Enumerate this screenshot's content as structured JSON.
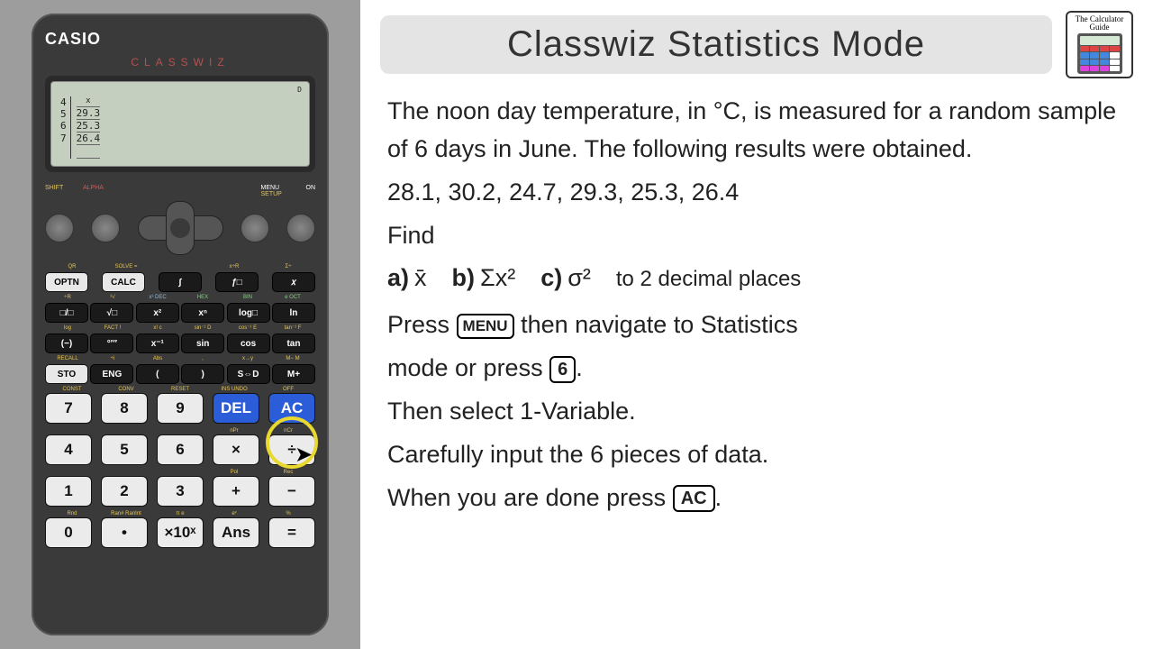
{
  "calc": {
    "brand": "CASIO",
    "model": "CLASSWIZ",
    "screen": {
      "indicator": "D",
      "col_header": "x",
      "rows": [
        {
          "idx": "4",
          "val": "29.3"
        },
        {
          "idx": "5",
          "val": "25.3"
        },
        {
          "idx": "6",
          "val": "26.4"
        },
        {
          "idx": "7",
          "val": ""
        }
      ]
    },
    "top_labels": {
      "shift": "SHIFT",
      "alpha": "ALPHA",
      "menu": "MENU",
      "setup": "SETUP",
      "on": "ON"
    },
    "func_rows": [
      {
        "labels": [
          {
            "t": "QR",
            "c": "yl"
          },
          {
            "t": "SOLVE =",
            "c": "yl"
          },
          {
            "t": "",
            "c": ""
          },
          {
            "t": "x÷R",
            "c": "yl"
          },
          {
            "t": "Σ÷",
            "c": "yl"
          }
        ],
        "btns": [
          {
            "t": "OPTN",
            "s": "wht"
          },
          {
            "t": "CALC",
            "s": "wht"
          },
          {
            "t": "∫",
            "s": "blk"
          },
          {
            "t": "ƒ□",
            "s": "blk"
          },
          {
            "t": "𝑥",
            "s": "blk"
          }
        ]
      },
      {
        "labels": [
          {
            "t": "÷R",
            "c": "yl"
          },
          {
            "t": "³√",
            "c": "yl"
          },
          {
            "t": "x³  DEC",
            "c": "bl"
          },
          {
            "t": "HEX",
            "c": "gl"
          },
          {
            "t": "BIN",
            "c": "gl"
          },
          {
            "t": "e  OCT",
            "c": "gl"
          }
        ],
        "btns": [
          {
            "t": "□/□",
            "s": "blk"
          },
          {
            "t": "√□",
            "s": "blk"
          },
          {
            "t": "x²",
            "s": "blk"
          },
          {
            "t": "xⁿ",
            "s": "blk"
          },
          {
            "t": "log□",
            "s": "blk"
          },
          {
            "t": "ln",
            "s": "blk"
          }
        ]
      },
      {
        "labels": [
          {
            "t": "log",
            "c": "yl"
          },
          {
            "t": "FACT !",
            "c": "yl"
          },
          {
            "t": "x! c",
            "c": "yl"
          },
          {
            "t": "sin⁻¹ D",
            "c": "yl"
          },
          {
            "t": "cos⁻¹ E",
            "c": "yl"
          },
          {
            "t": "tan⁻¹ F",
            "c": "yl"
          }
        ],
        "btns": [
          {
            "t": "(−)",
            "s": "blk"
          },
          {
            "t": "°′″",
            "s": "blk"
          },
          {
            "t": "x⁻¹",
            "s": "blk"
          },
          {
            "t": "sin",
            "s": "blk"
          },
          {
            "t": "cos",
            "s": "blk"
          },
          {
            "t": "tan",
            "s": "blk"
          }
        ]
      },
      {
        "labels": [
          {
            "t": "RECALL",
            "c": "yl"
          },
          {
            "t": "÷i",
            "c": "yl"
          },
          {
            "t": "Abs",
            "c": "yl"
          },
          {
            "t": ",",
            "c": "yl"
          },
          {
            "t": "x→y",
            "c": "yl"
          },
          {
            "t": "M−  M",
            "c": "yl"
          }
        ],
        "btns": [
          {
            "t": "STO",
            "s": "wht"
          },
          {
            "t": "ENG",
            "s": "blk"
          },
          {
            "t": "(",
            "s": "blk"
          },
          {
            "t": ")",
            "s": "blk"
          },
          {
            "t": "S⇔D",
            "s": "blk"
          },
          {
            "t": "M+",
            "s": "blk"
          }
        ]
      }
    ],
    "num_rows": [
      {
        "labels": [
          "CONST",
          "CONV",
          "RESET",
          "INS  UNDO",
          "OFF"
        ],
        "btns": [
          {
            "t": "7",
            "s": "num"
          },
          {
            "t": "8",
            "s": "num"
          },
          {
            "t": "9",
            "s": "num"
          },
          {
            "t": "DEL",
            "s": "blue"
          },
          {
            "t": "AC",
            "s": "blue"
          }
        ]
      },
      {
        "labels": [
          "",
          "",
          "",
          "nPr",
          "nCr"
        ],
        "btns": [
          {
            "t": "4",
            "s": "num"
          },
          {
            "t": "5",
            "s": "num"
          },
          {
            "t": "6",
            "s": "num"
          },
          {
            "t": "×",
            "s": "num"
          },
          {
            "t": "÷",
            "s": "num"
          }
        ]
      },
      {
        "labels": [
          "",
          "",
          "",
          "Pol",
          "Rec"
        ],
        "btns": [
          {
            "t": "1",
            "s": "num"
          },
          {
            "t": "2",
            "s": "num"
          },
          {
            "t": "3",
            "s": "num"
          },
          {
            "t": "+",
            "s": "num"
          },
          {
            "t": "−",
            "s": "num"
          }
        ]
      },
      {
        "labels": [
          "Rnd",
          "Ran# RanInt",
          "π  e",
          "eˣ",
          "%"
        ],
        "btns": [
          {
            "t": "0",
            "s": "num"
          },
          {
            "t": "•",
            "s": "num"
          },
          {
            "t": "×10ˣ",
            "s": "num"
          },
          {
            "t": "Ans",
            "s": "num"
          },
          {
            "t": "=",
            "s": "num"
          }
        ]
      }
    ]
  },
  "page": {
    "title": "Classwiz Statistics Mode",
    "logo_text": "The Calculator Guide",
    "logo_key_colors": [
      "#d44",
      "#d44",
      "#d44",
      "#d44",
      "#48d",
      "#48d",
      "#48d",
      "#fff",
      "#48d",
      "#48d",
      "#48d",
      "#fff",
      "#d4d",
      "#d4d",
      "#d4d",
      "#fff"
    ],
    "problem": "The noon day temperature, in °C, is measured for a random sample of 6 days in June. The following results were obtained.",
    "data": "28.1,  30.2,  24.7,  29.3,  25.3,  26.4",
    "find": "Find",
    "parts": {
      "a_lbl": "a)",
      "a_val": "x̄",
      "b_lbl": "b)",
      "b_val": "Σx²",
      "c_lbl": "c)",
      "c_val": "σ²",
      "note": "to 2 decimal places"
    },
    "instr": {
      "l1a": "Press ",
      "l1_key": "MENU",
      "l1b": " then navigate to Statistics",
      "l2a": "mode or press ",
      "l2_key": "6",
      "l2b": ".",
      "l3": "Then select 1-Variable.",
      "l4": "Carefully input the 6 pieces of data.",
      "l5a": "When you are done press ",
      "l5_key": "AC",
      "l5b": "."
    }
  }
}
